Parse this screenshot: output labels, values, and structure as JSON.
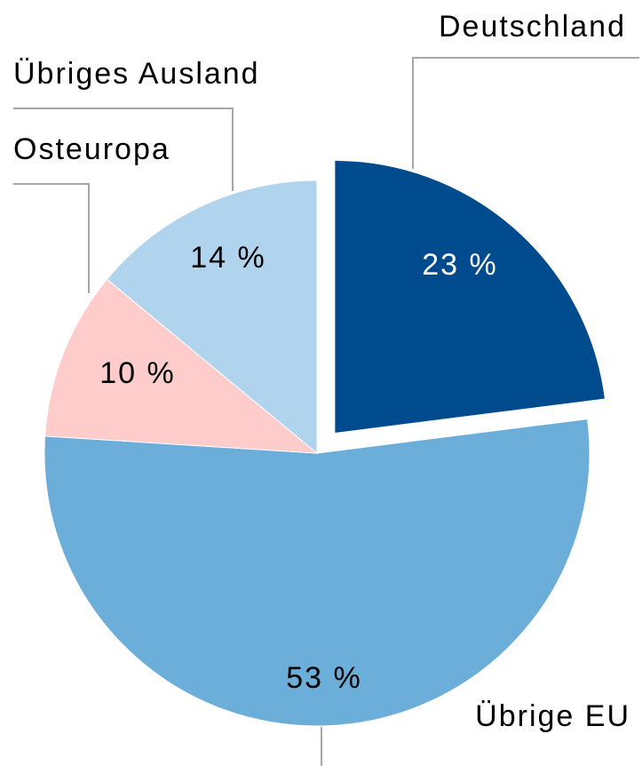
{
  "chart_data": {
    "type": "pie",
    "categories": [
      "Deutschland",
      "Übrige EU",
      "Osteuropa",
      "Übriges Ausland"
    ],
    "values": [
      23,
      53,
      10,
      14
    ],
    "value_labels": [
      "23 %",
      "53 %",
      "10 %",
      "14 %"
    ],
    "colors": [
      "#004b8d",
      "#6baed9",
      "#ffcccc",
      "#b0d4ee"
    ],
    "label_colors": [
      "#ffffff",
      "#000000",
      "#000000",
      "#000000"
    ],
    "exploded": [
      true,
      false,
      false,
      false
    ]
  }
}
